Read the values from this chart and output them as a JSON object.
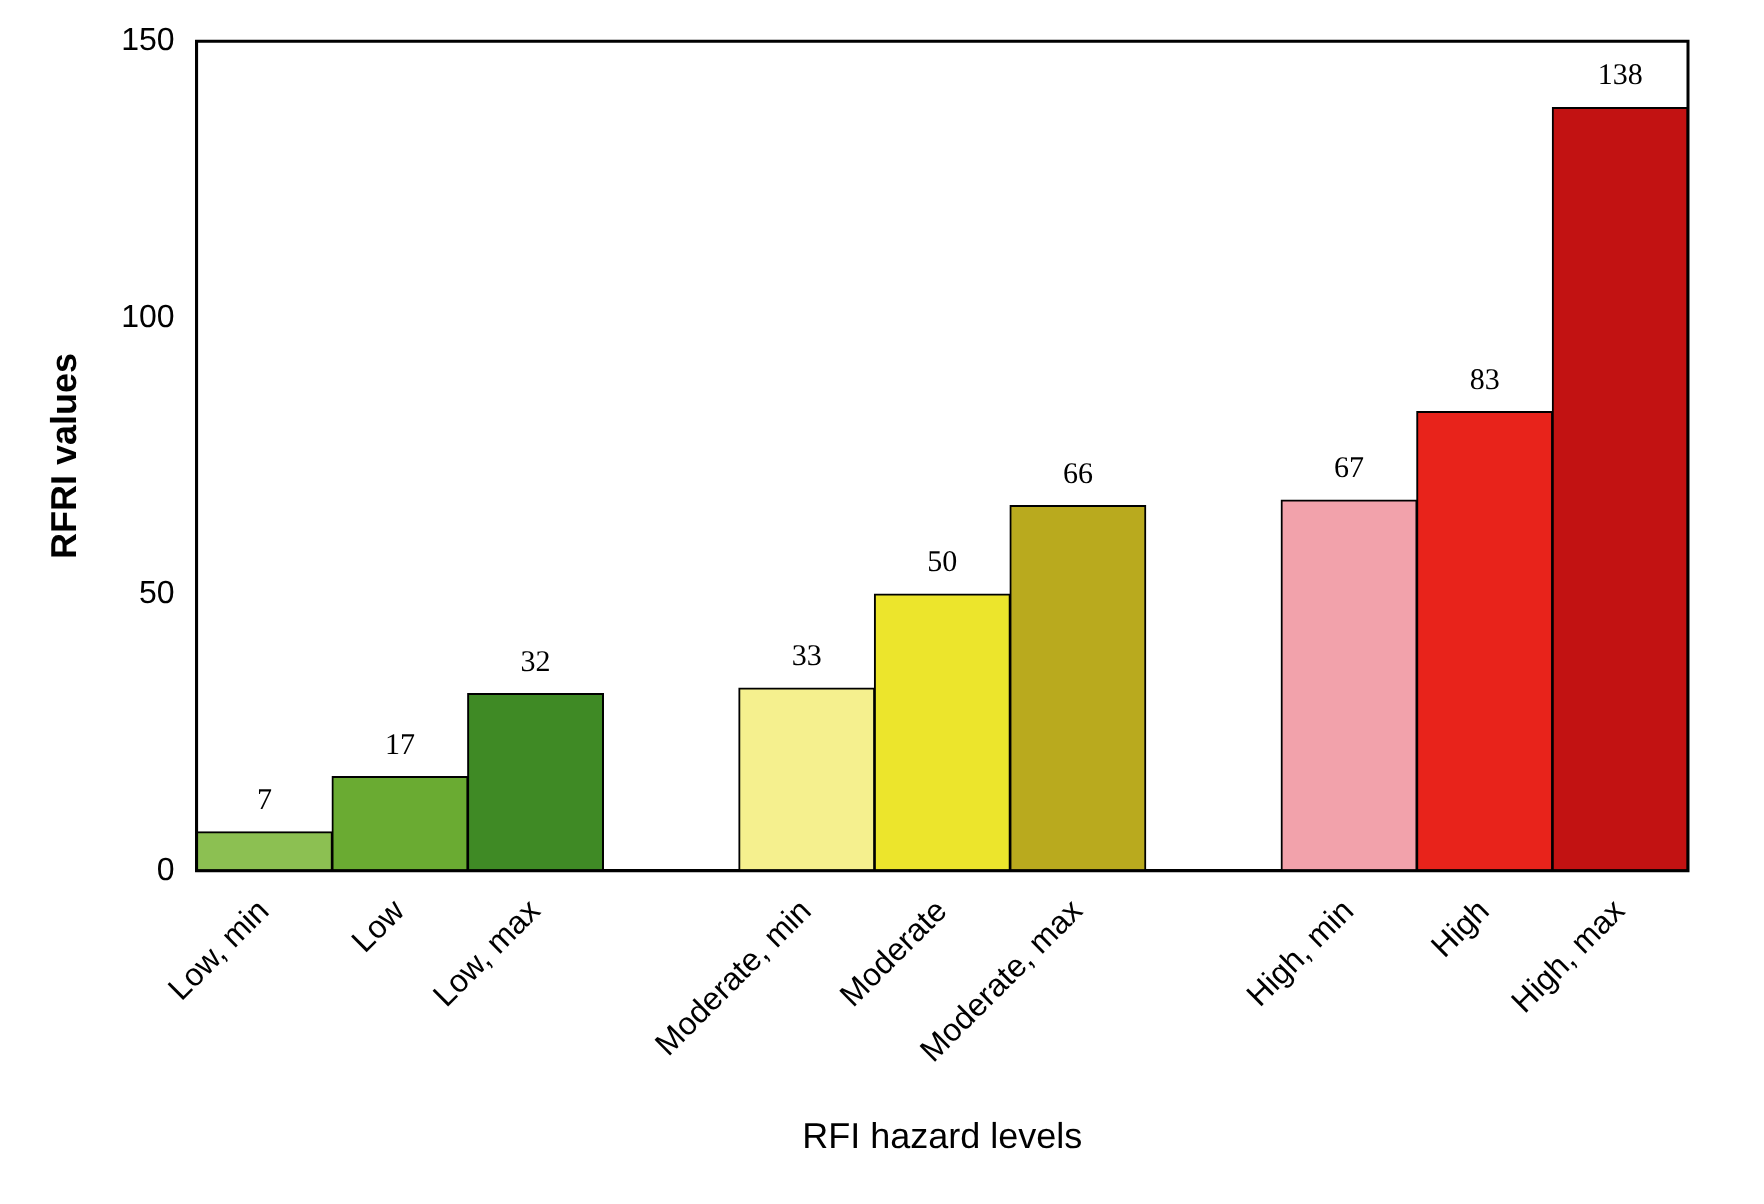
{
  "chart_data": {
    "type": "bar",
    "xlabel": "RFI hazard levels",
    "ylabel": "RFRI values",
    "categories": [
      "Low, min",
      "Low",
      "Low, max",
      null,
      "Moderate, min",
      "Moderate",
      "Moderate, max",
      null,
      "High, min",
      "High",
      "High, max"
    ],
    "values": [
      7,
      17,
      32,
      null,
      33,
      50,
      66,
      null,
      67,
      83,
      138
    ],
    "colors": [
      "#8cc052",
      "#6aab32",
      "#3f8a25",
      null,
      "#f5f08e",
      "#ece52c",
      "#b9aa1e",
      null,
      "#f2a2ab",
      "#e8231b",
      "#c21212"
    ],
    "ylim": [
      0,
      150
    ],
    "yticks": [
      0,
      50,
      100,
      150
    ],
    "grid": false,
    "legend": false,
    "data_labels": true
  }
}
